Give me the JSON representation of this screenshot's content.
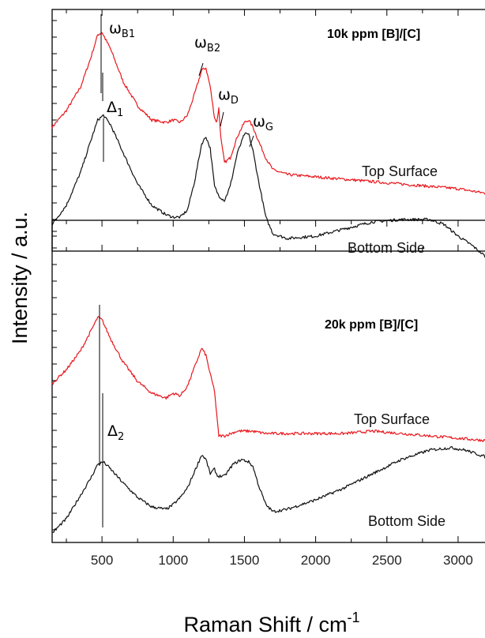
{
  "chart_data": [
    {
      "type": "line",
      "title": "10k ppm [B]/[C]",
      "xlabel": "Raman Shift / cm-1",
      "ylabel": "Intensity / a.u.",
      "xlim": [
        150,
        3200
      ],
      "y_ticks_labeled": false,
      "series": [
        {
          "name": "Top Surface",
          "color": "#e8181d",
          "x": [
            150,
            250,
            350,
            420,
            470,
            500,
            560,
            650,
            750,
            850,
            950,
            1000,
            1050,
            1100,
            1150,
            1200,
            1230,
            1260,
            1290,
            1305,
            1320,
            1335,
            1360,
            1400,
            1450,
            1500,
            1530,
            1560,
            1600,
            1650,
            1700,
            1800,
            2000,
            2200,
            2400,
            2600,
            2800,
            3000,
            3200
          ],
          "y": [
            0.53,
            0.6,
            0.7,
            0.82,
            0.92,
            0.93,
            0.86,
            0.72,
            0.62,
            0.56,
            0.55,
            0.56,
            0.55,
            0.58,
            0.67,
            0.77,
            0.78,
            0.7,
            0.57,
            0.55,
            0.61,
            0.48,
            0.38,
            0.4,
            0.49,
            0.55,
            0.56,
            0.53,
            0.47,
            0.4,
            0.35,
            0.33,
            0.32,
            0.31,
            0.3,
            0.29,
            0.28,
            0.27,
            0.25
          ]
        },
        {
          "name": "Bottom Side",
          "color": "#111111",
          "x": [
            150,
            250,
            350,
            420,
            470,
            510,
            560,
            650,
            750,
            850,
            950,
            1000,
            1050,
            1100,
            1150,
            1200,
            1230,
            1260,
            1290,
            1320,
            1360,
            1400,
            1450,
            1500,
            1530,
            1560,
            1600,
            1650,
            1700,
            1800,
            2000,
            2200,
            2400,
            2600,
            2800,
            2900,
            3000,
            3100,
            3200
          ],
          "y": [
            0.12,
            0.2,
            0.34,
            0.47,
            0.56,
            0.58,
            0.54,
            0.42,
            0.29,
            0.2,
            0.16,
            0.15,
            0.15,
            0.18,
            0.3,
            0.46,
            0.49,
            0.44,
            0.28,
            0.24,
            0.22,
            0.28,
            0.42,
            0.5,
            0.5,
            0.43,
            0.3,
            0.15,
            0.08,
            0.06,
            0.07,
            0.1,
            0.13,
            0.14,
            0.14,
            0.12,
            0.07,
            0.03,
            -0.02
          ]
        }
      ],
      "annotations": [
        {
          "label": "ωB1",
          "main": "ω",
          "sub": "B1"
        },
        {
          "label": "ωB2",
          "main": "ω",
          "sub": "B2"
        },
        {
          "label": "ωD",
          "main": "ω",
          "sub": "D"
        },
        {
          "label": "ωG",
          "main": "ω",
          "sub": "G"
        },
        {
          "label": "Δ1",
          "main": "Δ",
          "sub": "1"
        }
      ]
    },
    {
      "type": "line",
      "title": "20k ppm [B]/[C]",
      "xlabel": "Raman Shift / cm-1",
      "ylabel": "Intensity / a.u.",
      "xlim": [
        150,
        3200
      ],
      "y_ticks_labeled": false,
      "series": [
        {
          "name": "Top Surface",
          "color": "#e8181d",
          "x": [
            150,
            250,
            350,
            420,
            470,
            500,
            560,
            650,
            750,
            850,
            950,
            1000,
            1050,
            1100,
            1150,
            1200,
            1230,
            1260,
            1290,
            1305,
            1320,
            1360,
            1450,
            1550,
            1650,
            1800,
            2000,
            2200,
            2400,
            2600,
            2800,
            3000,
            3200
          ],
          "y": [
            0.68,
            0.74,
            0.82,
            0.9,
            0.96,
            0.95,
            0.87,
            0.77,
            0.69,
            0.64,
            0.62,
            0.64,
            0.63,
            0.67,
            0.75,
            0.83,
            0.8,
            0.72,
            0.65,
            0.55,
            0.46,
            0.46,
            0.48,
            0.48,
            0.47,
            0.47,
            0.47,
            0.47,
            0.48,
            0.47,
            0.46,
            0.45,
            0.44
          ]
        },
        {
          "name": "Bottom Side",
          "color": "#111111",
          "x": [
            150,
            250,
            350,
            420,
            470,
            510,
            560,
            650,
            750,
            850,
            950,
            1000,
            1050,
            1100,
            1150,
            1200,
            1230,
            1260,
            1290,
            1310,
            1360,
            1420,
            1480,
            1530,
            1560,
            1600,
            1650,
            1700,
            1800,
            2000,
            2200,
            2400,
            2600,
            2800,
            2950,
            3050,
            3200
          ],
          "y": [
            0.05,
            0.11,
            0.21,
            0.28,
            0.34,
            0.35,
            0.32,
            0.26,
            0.2,
            0.16,
            0.15,
            0.17,
            0.2,
            0.24,
            0.31,
            0.38,
            0.36,
            0.3,
            0.32,
            0.29,
            0.29,
            0.34,
            0.36,
            0.35,
            0.33,
            0.25,
            0.17,
            0.14,
            0.15,
            0.19,
            0.24,
            0.3,
            0.36,
            0.4,
            0.41,
            0.4,
            0.37
          ]
        }
      ],
      "annotations": [
        {
          "label": "Δ2",
          "main": "Δ",
          "sub": "2"
        }
      ]
    }
  ],
  "axes": {
    "x_tick_labels": [
      "500",
      "1000",
      "1500",
      "2000",
      "2500",
      "3000"
    ],
    "x_title_main": "Raman Shift / cm",
    "x_title_sup": "-1",
    "y_title": "Intensity / a.u."
  },
  "labels": {
    "top": {
      "title": "10k ppm [B]/[C]",
      "top_surface": "Top Surface",
      "bottom_side": "Bottom Side"
    },
    "bottom": {
      "title": "20k ppm [B]/[C]",
      "top_surface": "Top Surface",
      "bottom_side": "Bottom Side"
    }
  }
}
